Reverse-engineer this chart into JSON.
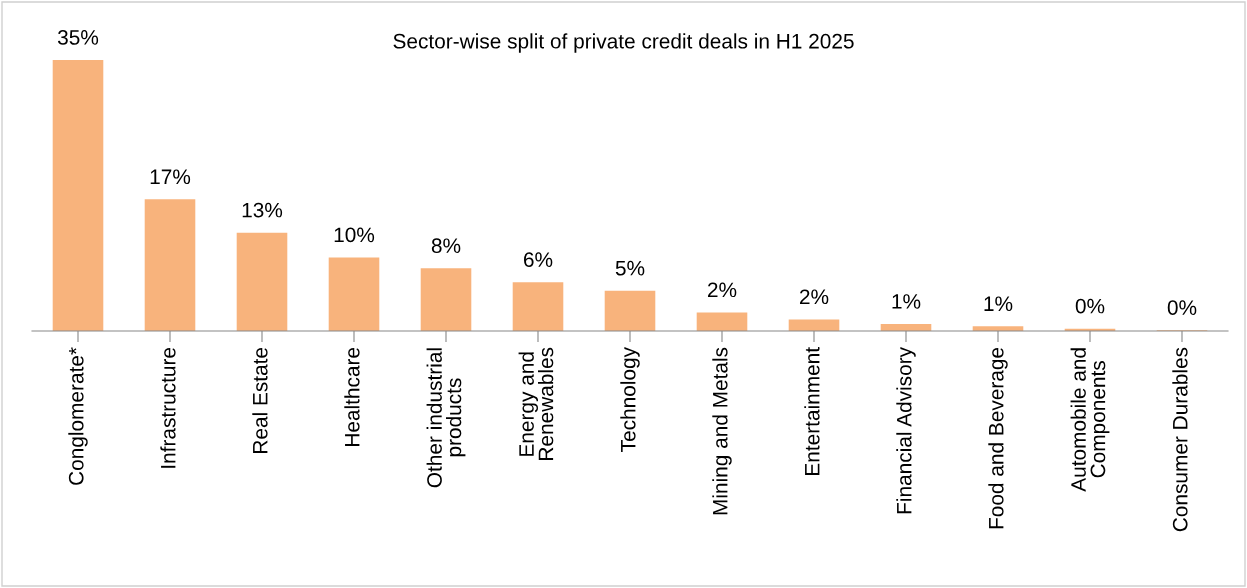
{
  "chart_data": {
    "type": "bar",
    "title": "Sector-wise split of private credit deals in H1 2025",
    "categories": [
      "Conglomerate*",
      "Infrastructure",
      "Real Estate",
      "Healthcare",
      "Other industrial\nproducts",
      "Energy and\nRenewables",
      "Technology",
      "Mining and Metals",
      "Entertainment",
      "Financial Advisory",
      "Food and Beverage",
      "Automobile and\nComponents",
      "Consumer Durables"
    ],
    "values": [
      35,
      17,
      12.7,
      9.5,
      8.1,
      6.3,
      5.2,
      2.4,
      1.5,
      0.9,
      0.6,
      0.3,
      0.1
    ],
    "value_labels": [
      "35%",
      "17%",
      "13%",
      "10%",
      "8%",
      "6%",
      "5%",
      "2%",
      "2%",
      "1%",
      "1%",
      "0%",
      "0%"
    ],
    "color": "#f8b37c",
    "grid": false,
    "legend": false
  }
}
